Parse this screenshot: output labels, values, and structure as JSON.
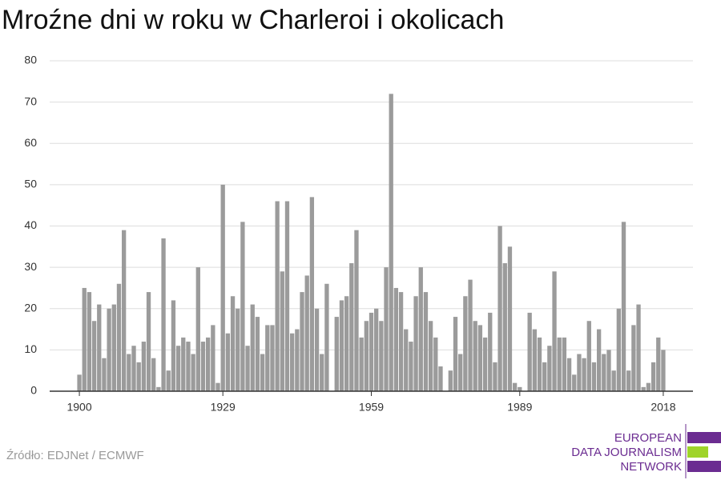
{
  "chart_data": {
    "type": "bar",
    "title": "Mroźne dni w roku w Charleroi i okolicach",
    "x": [
      1900,
      1901,
      1902,
      1903,
      1904,
      1905,
      1906,
      1907,
      1908,
      1909,
      1910,
      1911,
      1912,
      1913,
      1914,
      1915,
      1916,
      1917,
      1918,
      1919,
      1920,
      1921,
      1922,
      1923,
      1924,
      1925,
      1926,
      1927,
      1928,
      1929,
      1930,
      1931,
      1932,
      1933,
      1934,
      1935,
      1936,
      1937,
      1938,
      1939,
      1940,
      1941,
      1942,
      1943,
      1944,
      1945,
      1946,
      1947,
      1948,
      1949,
      1950,
      1951,
      1952,
      1953,
      1954,
      1955,
      1956,
      1957,
      1958,
      1959,
      1960,
      1961,
      1962,
      1963,
      1964,
      1965,
      1966,
      1967,
      1968,
      1969,
      1970,
      1971,
      1972,
      1973,
      1974,
      1975,
      1976,
      1977,
      1978,
      1979,
      1980,
      1981,
      1982,
      1983,
      1984,
      1985,
      1986,
      1987,
      1988,
      1989,
      1990,
      1991,
      1992,
      1993,
      1994,
      1995,
      1996,
      1997,
      1998,
      1999,
      2000,
      2001,
      2002,
      2003,
      2004,
      2005,
      2006,
      2007,
      2008,
      2009,
      2010,
      2011,
      2012,
      2013,
      2014,
      2015,
      2016,
      2017,
      2018
    ],
    "values": [
      4,
      25,
      24,
      17,
      21,
      8,
      20,
      21,
      26,
      39,
      9,
      11,
      7,
      12,
      24,
      8,
      1,
      37,
      5,
      22,
      11,
      13,
      12,
      9,
      30,
      12,
      13,
      16,
      2,
      50,
      14,
      23,
      20,
      41,
      11,
      21,
      18,
      9,
      16,
      16,
      46,
      29,
      46,
      14,
      15,
      24,
      28,
      47,
      20,
      9,
      26,
      0,
      18,
      22,
      23,
      31,
      39,
      13,
      17,
      19,
      20,
      17,
      30,
      72,
      25,
      24,
      15,
      12,
      23,
      30,
      24,
      17,
      13,
      6,
      0,
      5,
      18,
      9,
      23,
      27,
      17,
      16,
      13,
      19,
      7,
      40,
      31,
      35,
      2,
      1,
      0,
      19,
      15,
      13,
      7,
      11,
      29,
      13,
      13,
      8,
      4,
      9,
      8,
      17,
      7,
      15,
      9,
      10,
      5,
      20,
      41,
      5,
      16,
      21,
      1,
      2,
      7,
      13,
      10
    ],
    "color": "#9b9b9b",
    "xlim": [
      1894,
      2024
    ],
    "xticks": [
      1900,
      1929,
      1959,
      1989,
      2018
    ],
    "ylim": [
      0,
      80
    ],
    "yticks": [
      0,
      10,
      20,
      30,
      40,
      50,
      60,
      70,
      80
    ],
    "grid": true,
    "source": "Źródło: EDJNet / ECMWF",
    "logo": [
      "EUROPEAN",
      "DATA JOURNALISM",
      "NETWORK"
    ]
  }
}
